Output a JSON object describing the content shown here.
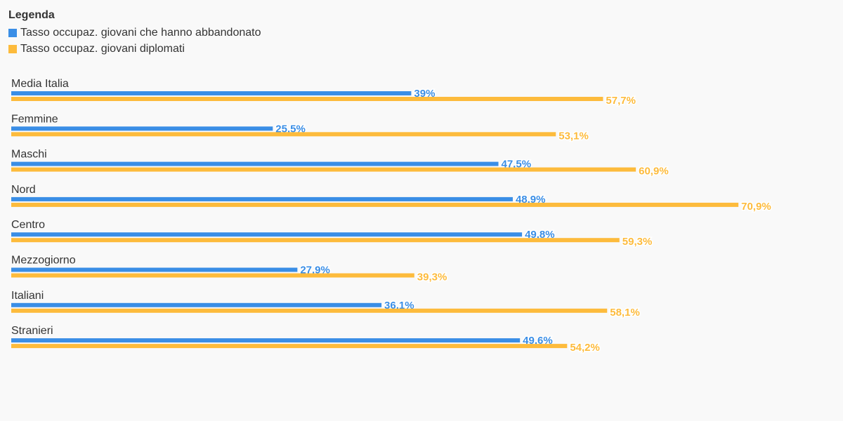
{
  "colors": {
    "series1": "#3a8ee6",
    "series2": "#fdbb3c",
    "category_text": "#333333",
    "background": "#f9f9f9"
  },
  "chart_data": {
    "type": "bar",
    "orientation": "horizontal",
    "legend_title": "Legenda",
    "legend_position": "top-left",
    "grid": false,
    "xlim": [
      0,
      100
    ],
    "categories": [
      "Media Italia",
      "Femmine",
      "Maschi",
      "Nord",
      "Centro",
      "Mezzogiorno",
      "Italiani",
      "Stranieri"
    ],
    "series": [
      {
        "name": "Tasso occupaz. giovani che hanno abbandonato",
        "values": [
          39,
          25.5,
          47.5,
          48.9,
          49.8,
          27.9,
          36.1,
          49.6
        ],
        "labels": [
          "39%",
          "25,5%",
          "47,5%",
          "48,9%",
          "49,8%",
          "27,9%",
          "36,1%",
          "49,6%"
        ]
      },
      {
        "name": "Tasso occupaz. giovani diplomati",
        "values": [
          57.7,
          53.1,
          60.9,
          70.9,
          59.3,
          39.3,
          58.1,
          54.2
        ],
        "labels": [
          "57,7%",
          "53,1%",
          "60,9%",
          "70,9%",
          "59,3%",
          "39,3%",
          "58,1%",
          "54,2%"
        ]
      }
    ]
  }
}
